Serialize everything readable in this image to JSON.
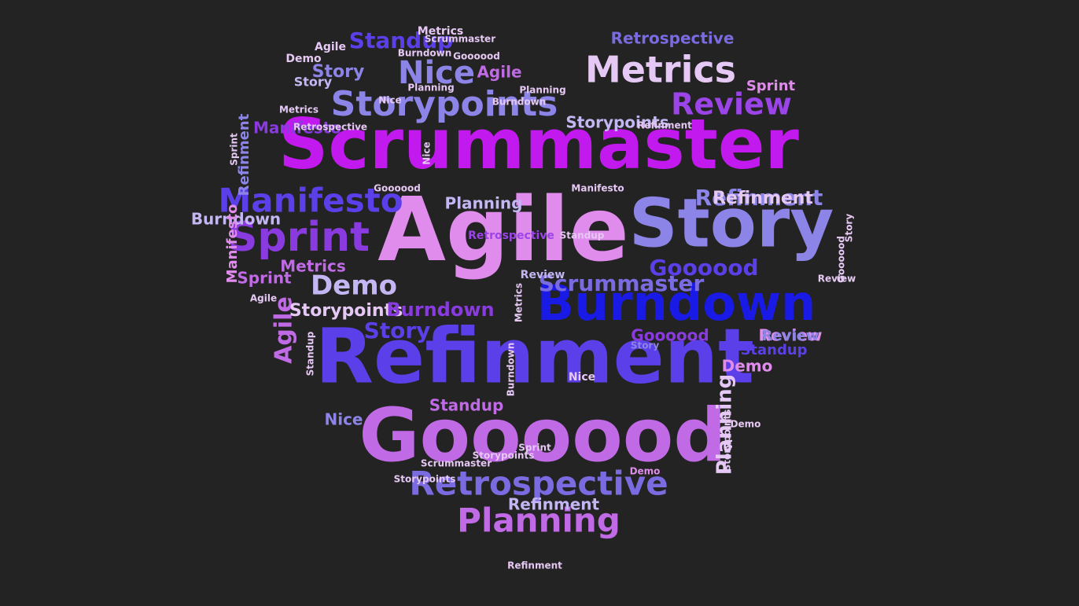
{
  "background": "#232323",
  "palette": {
    "violet": "#9B44E8",
    "magenta": "#C21AEE",
    "purple": "#8A3BE0",
    "indigo": "#5B3FE8",
    "blue": "#1A1AE6",
    "periwinkle": "#8C84E6",
    "lavender": "#C4B6F2",
    "pink": "#E08CEC",
    "orchid": "#C06AE6",
    "royal": "#3E2EE0",
    "slate": "#7A6CE0",
    "pale": "#E6C8F4"
  },
  "words": [
    {
      "text": "Scrummaster",
      "size": 88,
      "color": "magenta",
      "rot": 0
    },
    {
      "text": "Agile",
      "size": 112,
      "color": "pink",
      "rot": 0
    },
    {
      "text": "Story",
      "size": 86,
      "color": "periwinkle",
      "rot": 0
    },
    {
      "text": "Burndown",
      "size": 62,
      "color": "blue",
      "rot": 0
    },
    {
      "text": "Refinment",
      "size": 96,
      "color": "indigo",
      "rot": 0
    },
    {
      "text": "Goooood",
      "size": 94,
      "color": "orchid",
      "rot": 0
    },
    {
      "text": "Retrospective",
      "size": 42,
      "color": "slate",
      "rot": 0
    },
    {
      "text": "Planning",
      "size": 42,
      "color": "orchid",
      "rot": 0
    },
    {
      "text": "Metrics",
      "size": 46,
      "color": "pale",
      "rot": 0
    },
    {
      "text": "Storypoints",
      "size": 44,
      "color": "periwinkle",
      "rot": 0
    },
    {
      "text": "Review",
      "size": 38,
      "color": "violet",
      "rot": 0
    },
    {
      "text": "Manifesto",
      "size": 42,
      "color": "indigo",
      "rot": 0
    },
    {
      "text": "Sprint",
      "size": 52,
      "color": "purple",
      "rot": 0
    },
    {
      "text": "Nice",
      "size": 40,
      "color": "periwinkle",
      "rot": 0
    },
    {
      "text": "Standup",
      "size": 28,
      "color": "indigo",
      "rot": 0
    },
    {
      "text": "Demo",
      "size": 34,
      "color": "lavender",
      "rot": 0
    },
    {
      "text": "Goooood",
      "size": 28,
      "color": "indigo",
      "rot": 0
    },
    {
      "text": "Scrummaster",
      "size": 28,
      "color": "slate",
      "rot": 0
    },
    {
      "text": "Story",
      "size": 28,
      "color": "indigo",
      "rot": 0
    },
    {
      "text": "Refinment",
      "size": 28,
      "color": "periwinkle",
      "rot": 0
    },
    {
      "text": "Agile",
      "size": 30,
      "color": "orchid",
      "rot": -90
    },
    {
      "text": "Planning",
      "size": 26,
      "color": "pale",
      "rot": -90
    },
    {
      "text": "Storypoints",
      "size": 22,
      "color": "pale",
      "rot": 0
    },
    {
      "text": "Burndown",
      "size": 24,
      "color": "purple",
      "rot": 0
    },
    {
      "text": "Standup",
      "size": 20,
      "color": "orchid",
      "rot": 0
    },
    {
      "text": "Manifesto",
      "size": 20,
      "color": "purple",
      "rot": 0
    },
    {
      "text": "Retrospective",
      "size": 20,
      "color": "slate",
      "rot": 0
    },
    {
      "text": "Refinment",
      "size": 22,
      "color": "pale",
      "rot": 0
    },
    {
      "text": "Review",
      "size": 20,
      "color": "pink",
      "rot": 0
    },
    {
      "text": "Demo",
      "size": 20,
      "color": "pink",
      "rot": 0
    },
    {
      "text": "Sprint",
      "size": 20,
      "color": "orchid",
      "rot": 0
    },
    {
      "text": "Burndown",
      "size": 20,
      "color": "lavender",
      "rot": 0
    },
    {
      "text": "Metrics",
      "size": 20,
      "color": "orchid",
      "rot": 0
    },
    {
      "text": "Agile",
      "size": 20,
      "color": "orchid",
      "rot": 0
    },
    {
      "text": "Goooood",
      "size": 20,
      "color": "purple",
      "rot": 0
    },
    {
      "text": "Storypoints",
      "size": 20,
      "color": "lavender",
      "rot": 0
    },
    {
      "text": "Planning",
      "size": 20,
      "color": "lavender",
      "rot": 0
    },
    {
      "text": "Refinment",
      "size": 20,
      "color": "lavender",
      "rot": 0
    },
    {
      "text": "Story",
      "size": 22,
      "color": "periwinkle",
      "rot": 0
    },
    {
      "text": "Review",
      "size": 18,
      "color": "periwinkle",
      "rot": 0
    },
    {
      "text": "Standup",
      "size": 18,
      "color": "indigo",
      "rot": 0
    },
    {
      "text": "Sprint",
      "size": 18,
      "color": "pink",
      "rot": 0
    },
    {
      "text": "Nice",
      "size": 20,
      "color": "periwinkle",
      "rot": 0
    },
    {
      "text": "Manifesto",
      "size": 18,
      "color": "pink",
      "rot": -90
    },
    {
      "text": "Refinment",
      "size": 18,
      "color": "periwinkle",
      "rot": -90
    },
    {
      "text": "Story",
      "size": 16,
      "color": "lavender",
      "rot": 0
    },
    {
      "text": "Demo",
      "size": 14,
      "color": "pale",
      "rot": 0
    },
    {
      "text": "Agile",
      "size": 14,
      "color": "pale",
      "rot": 0
    },
    {
      "text": "Retrospective",
      "size": 14,
      "color": "violet",
      "rot": 0
    },
    {
      "text": "Review",
      "size": 14,
      "color": "lavender",
      "rot": 0
    },
    {
      "text": "Nice",
      "size": 14,
      "color": "pale",
      "rot": 0
    },
    {
      "text": "Metrics",
      "size": 14,
      "color": "pale",
      "rot": 0
    },
    {
      "text": "Scrummaster",
      "size": 12,
      "color": "pale",
      "rot": 0
    },
    {
      "text": "Goooood",
      "size": 12,
      "color": "pale",
      "rot": 0
    },
    {
      "text": "Burndown",
      "size": 12,
      "color": "pale",
      "rot": 0
    },
    {
      "text": "Storypoints",
      "size": 12,
      "color": "pale",
      "rot": 0
    },
    {
      "text": "Planning",
      "size": 12,
      "color": "pale",
      "rot": 0
    },
    {
      "text": "Standup",
      "size": 12,
      "color": "pale",
      "rot": 0
    },
    {
      "text": "Manifesto",
      "size": 12,
      "color": "pale",
      "rot": 0
    },
    {
      "text": "Sprint",
      "size": 12,
      "color": "pale",
      "rot": 0
    },
    {
      "text": "Demo",
      "size": 12,
      "color": "pink",
      "rot": 0
    },
    {
      "text": "Refinment",
      "size": 12,
      "color": "pale",
      "rot": 0
    },
    {
      "text": "Story",
      "size": 12,
      "color": "periwinkle",
      "rot": 0
    },
    {
      "text": "Agile",
      "size": 12,
      "color": "pale",
      "rot": 0
    },
    {
      "text": "Review",
      "size": 12,
      "color": "pale",
      "rot": 0
    },
    {
      "text": "Metrics",
      "size": 12,
      "color": "pale",
      "rot": 0
    },
    {
      "text": "Retrospective",
      "size": 12,
      "color": "pale",
      "rot": 0
    },
    {
      "text": "Nice",
      "size": 12,
      "color": "pale",
      "rot": 0
    },
    {
      "text": "Goooood",
      "size": 12,
      "color": "pale",
      "rot": 0
    },
    {
      "text": "Storypoints",
      "size": 12,
      "color": "pale",
      "rot": 0
    },
    {
      "text": "Burndown",
      "size": 12,
      "color": "pale",
      "rot": 0
    },
    {
      "text": "Scrummaster",
      "size": 12,
      "color": "pale",
      "rot": 0
    },
    {
      "text": "Planning",
      "size": 12,
      "color": "pale",
      "rot": 0
    },
    {
      "text": "Sprint",
      "size": 12,
      "color": "pale",
      "rot": -90
    },
    {
      "text": "Story",
      "size": 12,
      "color": "pale",
      "rot": -90
    },
    {
      "text": "Storypoints",
      "size": 12,
      "color": "pale",
      "rot": -90
    },
    {
      "text": "Goooood",
      "size": 12,
      "color": "pale",
      "rot": -90
    },
    {
      "text": "Metrics",
      "size": 12,
      "color": "pale",
      "rot": -90
    },
    {
      "text": "Nice",
      "size": 12,
      "color": "pale",
      "rot": -90
    },
    {
      "text": "Standup",
      "size": 12,
      "color": "pale",
      "rot": -90
    },
    {
      "text": "Burndown",
      "size": 12,
      "color": "pale",
      "rot": -90
    },
    {
      "text": "Demo",
      "size": 12,
      "color": "pale",
      "rot": 0
    },
    {
      "text": "Refinment",
      "size": 12,
      "color": "pale",
      "rot": 0
    }
  ]
}
